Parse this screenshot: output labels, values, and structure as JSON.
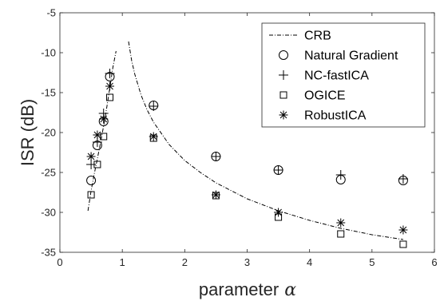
{
  "chart_data": {
    "type": "scatter",
    "title": "",
    "xlabel": "parameter",
    "xlabel_symbol": "α",
    "ylabel": "ISR (dB)",
    "xlim": [
      0,
      6
    ],
    "ylim": [
      -35,
      -5
    ],
    "xticks": [
      0,
      1,
      2,
      3,
      4,
      5,
      6
    ],
    "yticks": [
      -35,
      -30,
      -25,
      -20,
      -15,
      -10,
      -5
    ],
    "grid": false,
    "legend_position": "top-right",
    "series": [
      {
        "name": "CRB",
        "style": "dash-dot-line",
        "segments": [
          [
            [
              0.45,
              -29.8
            ],
            [
              0.5,
              -27.3
            ],
            [
              0.55,
              -25.2
            ],
            [
              0.6,
              -23.3
            ],
            [
              0.65,
              -21.3
            ],
            [
              0.7,
              -19.2
            ],
            [
              0.75,
              -16.9
            ],
            [
              0.8,
              -14.4
            ],
            [
              0.85,
              -11.8
            ],
            [
              0.9,
              -9.8
            ]
          ],
          [
            [
              1.1,
              -8.6
            ],
            [
              1.15,
              -11.0
            ],
            [
              1.2,
              -12.7
            ],
            [
              1.3,
              -15.3
            ],
            [
              1.4,
              -17.2
            ],
            [
              1.5,
              -18.7
            ],
            [
              1.75,
              -21.5
            ],
            [
              2.0,
              -23.5
            ],
            [
              2.25,
              -25.0
            ],
            [
              2.5,
              -26.3
            ],
            [
              3.0,
              -28.3
            ],
            [
              3.5,
              -29.8
            ],
            [
              4.0,
              -31.0
            ],
            [
              4.5,
              -32.0
            ],
            [
              5.0,
              -32.8
            ],
            [
              5.5,
              -33.4
            ]
          ]
        ]
      },
      {
        "name": "Natural Gradient",
        "marker": "circle",
        "points": [
          [
            0.5,
            -26.0
          ],
          [
            0.6,
            -21.6
          ],
          [
            0.7,
            -18.6
          ],
          [
            0.8,
            -13.0
          ],
          [
            1.5,
            -16.6
          ],
          [
            2.5,
            -23.0
          ],
          [
            3.5,
            -24.7
          ],
          [
            4.5,
            -25.9
          ],
          [
            5.5,
            -26.0
          ]
        ]
      },
      {
        "name": "NC-fastICA",
        "marker": "plus",
        "points": [
          [
            0.5,
            -24.0
          ],
          [
            0.6,
            -21.2
          ],
          [
            0.7,
            -17.6
          ],
          [
            0.8,
            -12.6
          ],
          [
            1.5,
            -16.7
          ],
          [
            2.5,
            -23.0
          ],
          [
            3.5,
            -24.7
          ],
          [
            4.5,
            -25.3
          ],
          [
            5.5,
            -25.8
          ]
        ]
      },
      {
        "name": "OGICE",
        "marker": "square",
        "points": [
          [
            0.5,
            -27.8
          ],
          [
            0.6,
            -24.0
          ],
          [
            0.7,
            -20.5
          ],
          [
            0.8,
            -15.6
          ],
          [
            1.5,
            -20.7
          ],
          [
            2.5,
            -27.9
          ],
          [
            3.5,
            -30.6
          ],
          [
            4.5,
            -32.7
          ],
          [
            5.5,
            -34.0
          ]
        ]
      },
      {
        "name": "RobustICA",
        "marker": "asterisk",
        "points": [
          [
            0.5,
            -23.0
          ],
          [
            0.6,
            -20.3
          ],
          [
            0.7,
            -18.3
          ],
          [
            0.8,
            -14.2
          ],
          [
            1.5,
            -20.5
          ],
          [
            2.5,
            -27.8
          ],
          [
            3.5,
            -30.0
          ],
          [
            4.5,
            -31.3
          ],
          [
            5.5,
            -32.2
          ]
        ]
      }
    ]
  }
}
